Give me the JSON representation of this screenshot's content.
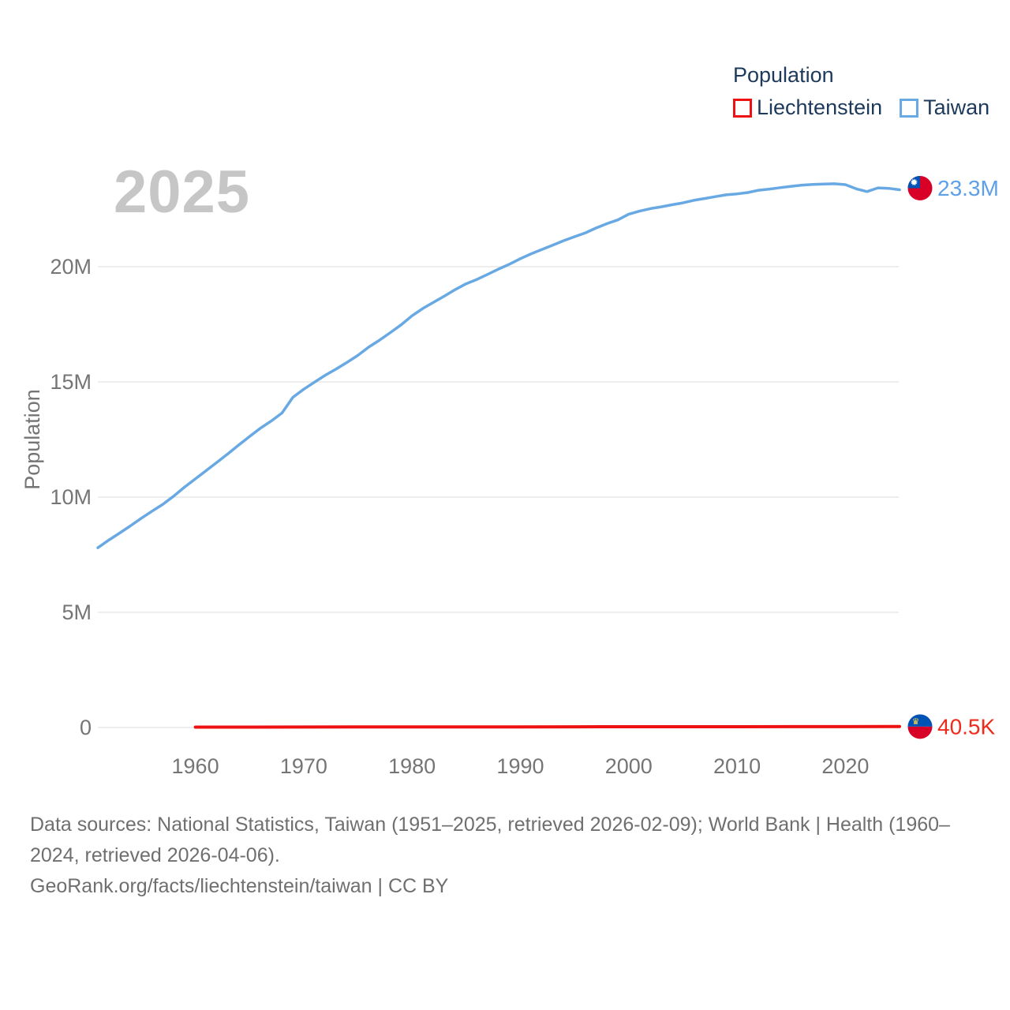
{
  "legend": {
    "title": "Population",
    "items": [
      {
        "label": "Liechtenstein",
        "color": "#ee1111"
      },
      {
        "label": "Taiwan",
        "color": "#6aaae4"
      }
    ]
  },
  "chart_data": {
    "type": "line",
    "year_label": "2025",
    "ylabel": "Population",
    "legend_position": "top-right",
    "grid": true,
    "x_axis": {
      "range": [
        1951,
        2025
      ],
      "ticks": [
        "1960",
        "1970",
        "1980",
        "1990",
        "2000",
        "2010",
        "2020"
      ]
    },
    "y_axis": {
      "unit": "millions",
      "range": [
        0,
        24.3
      ],
      "ticks": [
        {
          "v": 0,
          "label": "0"
        },
        {
          "v": 5,
          "label": "5M"
        },
        {
          "v": 10,
          "label": "10M"
        },
        {
          "v": 15,
          "label": "15M"
        },
        {
          "v": 20,
          "label": "20M"
        }
      ]
    },
    "series": [
      {
        "name": "Liechtenstein",
        "color": "#ee1111",
        "end_label": "40.5K",
        "end_label_color": "#ee2b1c",
        "unit": "thousands",
        "flag": "liechtenstein",
        "points": [
          [
            1960,
            16.2
          ],
          [
            1965,
            18.8
          ],
          [
            1970,
            21.3
          ],
          [
            1975,
            23.3
          ],
          [
            1980,
            25.3
          ],
          [
            1985,
            27.1
          ],
          [
            1990,
            28.7
          ],
          [
            1995,
            30.9
          ],
          [
            2000,
            33.0
          ],
          [
            2005,
            34.6
          ],
          [
            2010,
            35.9
          ],
          [
            2015,
            37.2
          ],
          [
            2020,
            38.7
          ],
          [
            2024,
            40.2
          ],
          [
            2025,
            40.5
          ]
        ]
      },
      {
        "name": "Taiwan",
        "color": "#68a9e4",
        "end_label": "23.3M",
        "end_label_color": "#5d9fe8",
        "unit": "millions",
        "flag": "taiwan",
        "points": [
          [
            1951,
            7.8
          ],
          [
            1952,
            8.13
          ],
          [
            1953,
            8.44
          ],
          [
            1954,
            8.75
          ],
          [
            1955,
            9.08
          ],
          [
            1956,
            9.39
          ],
          [
            1957,
            9.69
          ],
          [
            1958,
            10.04
          ],
          [
            1959,
            10.43
          ],
          [
            1960,
            10.79
          ],
          [
            1961,
            11.15
          ],
          [
            1962,
            11.51
          ],
          [
            1963,
            11.88
          ],
          [
            1964,
            12.26
          ],
          [
            1965,
            12.63
          ],
          [
            1966,
            12.99
          ],
          [
            1967,
            13.3
          ],
          [
            1968,
            13.65
          ],
          [
            1969,
            14.33
          ],
          [
            1970,
            14.68
          ],
          [
            1971,
            14.99
          ],
          [
            1972,
            15.29
          ],
          [
            1973,
            15.56
          ],
          [
            1974,
            15.85
          ],
          [
            1975,
            16.15
          ],
          [
            1976,
            16.51
          ],
          [
            1977,
            16.81
          ],
          [
            1978,
            17.14
          ],
          [
            1979,
            17.48
          ],
          [
            1980,
            17.87
          ],
          [
            1981,
            18.19
          ],
          [
            1982,
            18.46
          ],
          [
            1983,
            18.73
          ],
          [
            1984,
            19.01
          ],
          [
            1985,
            19.26
          ],
          [
            1986,
            19.45
          ],
          [
            1987,
            19.67
          ],
          [
            1988,
            19.9
          ],
          [
            1989,
            20.11
          ],
          [
            1990,
            20.35
          ],
          [
            1991,
            20.56
          ],
          [
            1992,
            20.75
          ],
          [
            1993,
            20.94
          ],
          [
            1994,
            21.13
          ],
          [
            1995,
            21.3
          ],
          [
            1996,
            21.47
          ],
          [
            1997,
            21.68
          ],
          [
            1998,
            21.87
          ],
          [
            1999,
            22.03
          ],
          [
            2000,
            22.28
          ],
          [
            2001,
            22.41
          ],
          [
            2002,
            22.52
          ],
          [
            2003,
            22.6
          ],
          [
            2004,
            22.69
          ],
          [
            2005,
            22.77
          ],
          [
            2006,
            22.88
          ],
          [
            2007,
            22.96
          ],
          [
            2008,
            23.04
          ],
          [
            2009,
            23.12
          ],
          [
            2010,
            23.16
          ],
          [
            2011,
            23.22
          ],
          [
            2012,
            23.32
          ],
          [
            2013,
            23.37
          ],
          [
            2014,
            23.43
          ],
          [
            2015,
            23.49
          ],
          [
            2016,
            23.54
          ],
          [
            2017,
            23.57
          ],
          [
            2018,
            23.59
          ],
          [
            2019,
            23.6
          ],
          [
            2020,
            23.56
          ],
          [
            2021,
            23.38
          ],
          [
            2022,
            23.26
          ],
          [
            2023,
            23.42
          ],
          [
            2024,
            23.4
          ],
          [
            2025,
            23.34
          ]
        ]
      }
    ]
  },
  "footer": {
    "sources_line1": "Data sources: National Statistics, Taiwan (1951–2025, retrieved 2026-02-09); World Bank | Health (1960–",
    "sources_line2": "2024, retrieved 2026-04-06).",
    "attribution": "GeoRank.org/facts/liechtenstein/taiwan | CC BY"
  }
}
